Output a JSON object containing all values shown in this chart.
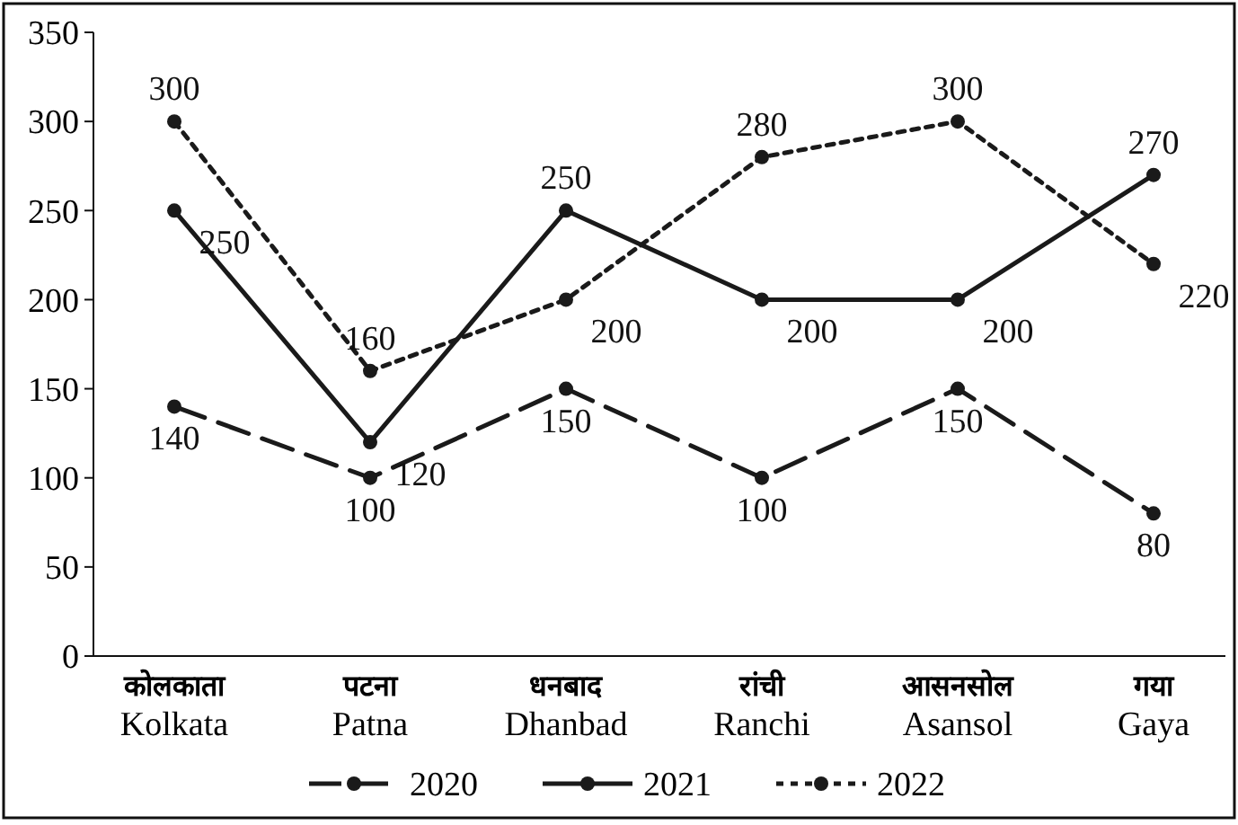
{
  "chart_data": {
    "type": "line",
    "categories": [
      "कोलकाता\nKolkata",
      "पटना\nPatna",
      "धनबाद\nDhanbad",
      "रांची\nRanchi",
      "आसनसोल\nAsansol",
      "गया\nGaya"
    ],
    "series": [
      {
        "name": "2020",
        "color": "#1a1a1a",
        "line_style": "dashed",
        "values": [
          140,
          100,
          150,
          100,
          150,
          80
        ]
      },
      {
        "name": "2021",
        "color": "#1a1a1a",
        "line_style": "solid",
        "values": [
          250,
          120,
          250,
          200,
          200,
          270
        ]
      },
      {
        "name": "2022",
        "color": "#1a1a1a",
        "line_style": "dotted",
        "values": [
          300,
          160,
          200,
          280,
          300,
          220
        ]
      }
    ],
    "ylim": [
      0,
      350
    ],
    "yticks": [
      0,
      50,
      100,
      150,
      200,
      250,
      300,
      350
    ],
    "grid": false,
    "legend": "bottom",
    "marker": "circle",
    "data_labels": true
  }
}
